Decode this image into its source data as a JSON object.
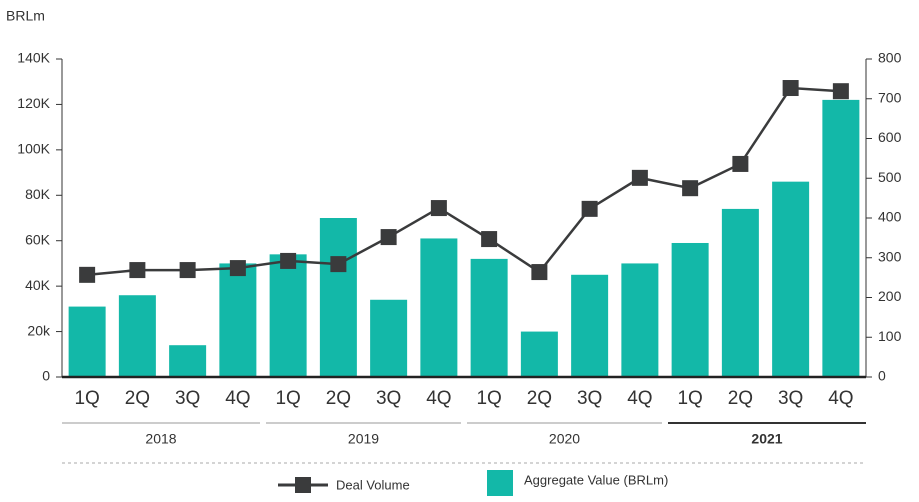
{
  "chart_data": {
    "type": "bar-line",
    "y_label": "BRLm",
    "categories": [
      "1Q",
      "2Q",
      "3Q",
      "4Q",
      "1Q",
      "2Q",
      "3Q",
      "4Q",
      "1Q",
      "2Q",
      "3Q",
      "4Q",
      "1Q",
      "2Q",
      "3Q",
      "4Q"
    ],
    "groups": [
      {
        "label": "2018",
        "bold": false
      },
      {
        "label": "2019",
        "bold": false
      },
      {
        "label": "2020",
        "bold": false
      },
      {
        "label": "2021",
        "bold": true
      }
    ],
    "series": [
      {
        "name": "Deal Volume",
        "kind": "line",
        "axis": "y2",
        "color": "#3a3b3c",
        "values": [
          257,
          269,
          269,
          274,
          292,
          284,
          352,
          425,
          347,
          264,
          423,
          501,
          475,
          536,
          727,
          719
        ]
      },
      {
        "name": "Aggregate Value (BRLm)",
        "kind": "bar",
        "axis": "y",
        "color": "#13b8a8",
        "values": [
          31000,
          36000,
          14000,
          50000,
          54000,
          70000,
          34000,
          61000,
          52000,
          20000,
          45000,
          50000,
          59000,
          74000,
          86000,
          122000
        ]
      }
    ],
    "ylim": [
      0,
      140000
    ],
    "yticks": [
      0,
      {
        "value": 20000,
        "label": "20k"
      },
      {
        "value": 40000,
        "label": "40K"
      },
      {
        "value": 60000,
        "label": "60K"
      },
      {
        "value": 80000,
        "label": "80K"
      },
      {
        "value": 100000,
        "label": "100K"
      },
      {
        "value": 120000,
        "label": "120K"
      },
      {
        "value": 140000,
        "label": "140K"
      }
    ],
    "y2lim": [
      0,
      800
    ],
    "y2ticks": [
      0,
      100,
      200,
      300,
      400,
      500,
      600,
      700,
      800
    ],
    "grid": false
  }
}
